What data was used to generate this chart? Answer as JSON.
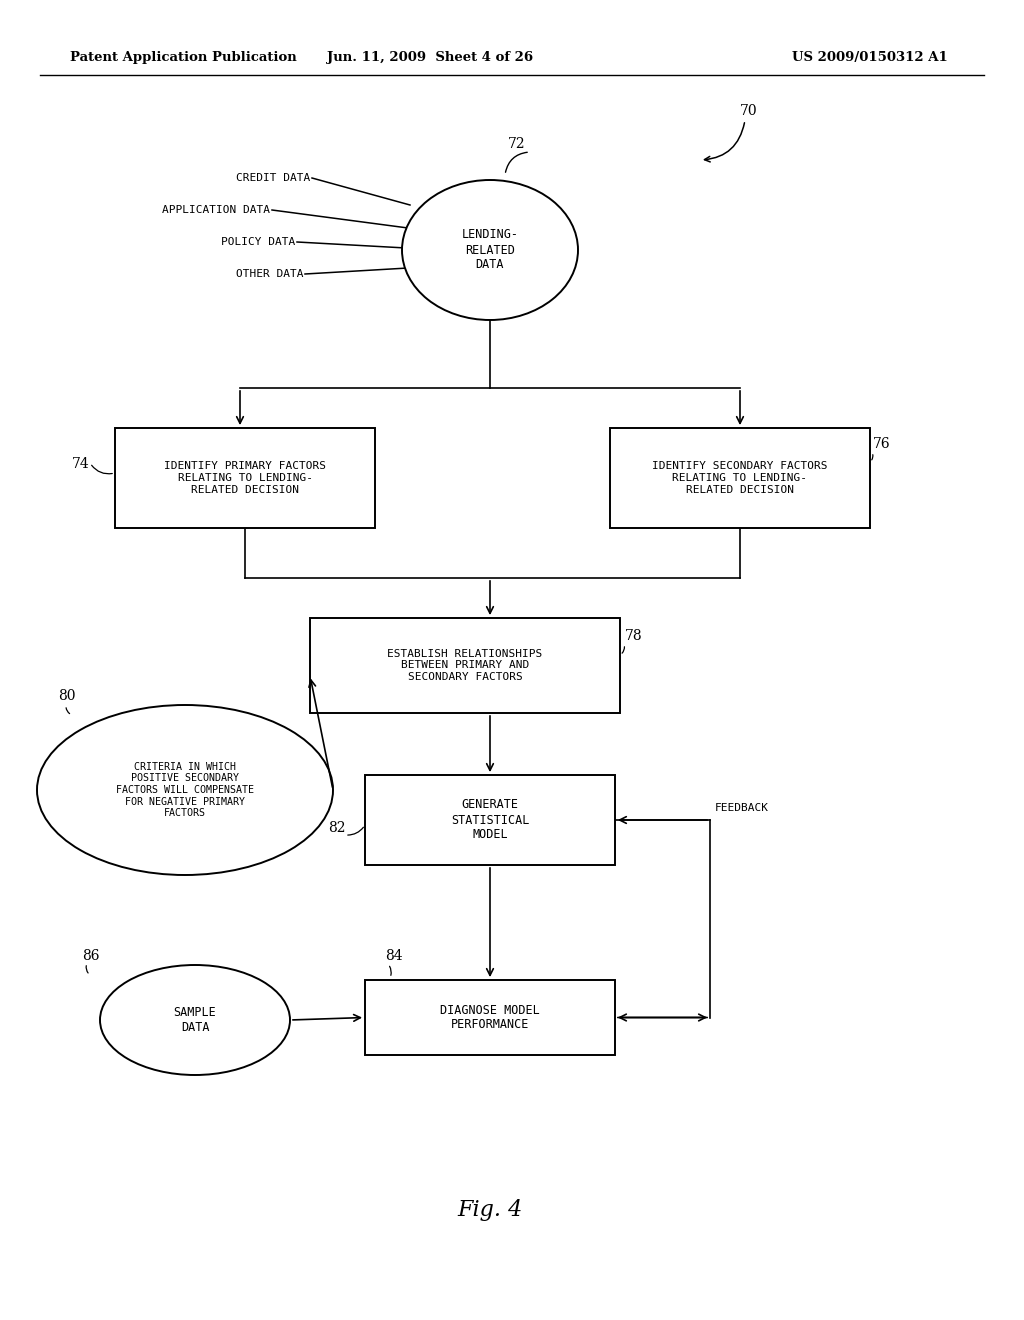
{
  "bg_color": "#ffffff",
  "header_left": "Patent Application Publication",
  "header_center": "Jun. 11, 2009  Sheet 4 of 26",
  "header_right": "US 2009/0150312 A1",
  "fig_label": "Fig. 4"
}
